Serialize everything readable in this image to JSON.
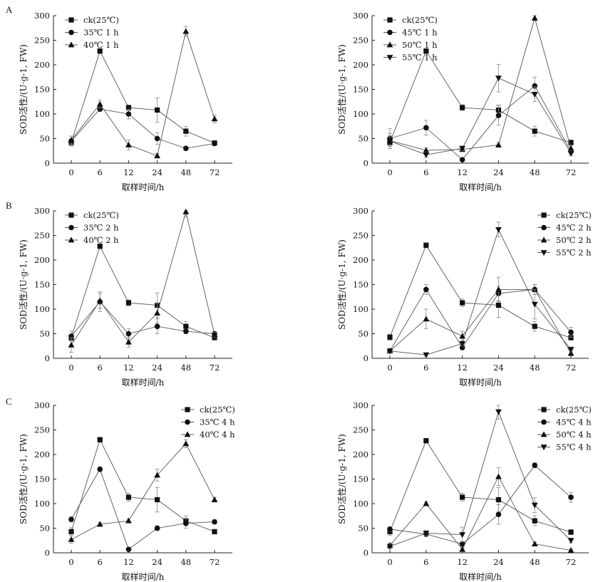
{
  "row_labels": [
    "A",
    "B",
    "C"
  ],
  "chart_data": [
    {
      "type": "line",
      "panel": "A-left",
      "categories": [
        "0",
        "6",
        "12",
        "24",
        "48",
        "72"
      ],
      "xlabel": "取样时间/h",
      "ylabel": "SOD活性/(U·g-1, FW)",
      "ylim": [
        0,
        300
      ],
      "yticks": [
        "0",
        "50",
        "100",
        "150",
        "200",
        "250",
        "300"
      ],
      "legend_position": "top-left",
      "series": [
        {
          "name": "ck(25℃)",
          "marker": "square",
          "values": [
            42,
            228,
            113,
            108,
            65,
            41
          ],
          "errors": [
            6,
            5,
            5,
            25,
            10,
            4
          ]
        },
        {
          "name": "35℃ 1 h",
          "marker": "circle",
          "values": [
            45,
            110,
            100,
            50,
            30,
            40
          ],
          "errors": [
            10,
            5,
            10,
            12,
            4,
            3
          ]
        },
        {
          "name": "40℃ 1 h",
          "marker": "triangle-up",
          "values": [
            47,
            120,
            37,
            15,
            268,
            90
          ],
          "errors": [
            8,
            8,
            10,
            5,
            10,
            8
          ]
        }
      ]
    },
    {
      "type": "line",
      "panel": "A-right",
      "categories": [
        "0",
        "6",
        "12",
        "24",
        "48",
        "72"
      ],
      "xlabel": "取样时间/h",
      "ylabel": "SOD活性/(U·g-1, FW)",
      "ylim": [
        0,
        300
      ],
      "yticks": [
        "0",
        "50",
        "100",
        "150",
        "200",
        "250",
        "300"
      ],
      "legend_position": "top-left",
      "series": [
        {
          "name": "ck(25℃)",
          "marker": "square",
          "values": [
            42,
            228,
            113,
            108,
            65,
            42
          ],
          "errors": [
            8,
            5,
            6,
            10,
            10,
            5
          ]
        },
        {
          "name": "45℃ 1 h",
          "marker": "circle",
          "values": [
            50,
            72,
            7,
            97,
            157,
            24
          ],
          "errors": [
            20,
            15,
            3,
            20,
            18,
            5
          ]
        },
        {
          "name": "50℃ 1 h",
          "marker": "triangle-up",
          "values": [
            46,
            26,
            28,
            37,
            295,
            30
          ],
          "errors": [
            10,
            5,
            5,
            5,
            5,
            5
          ]
        },
        {
          "name": "55℃ 1 h",
          "marker": "triangle-down",
          "values": [
            45,
            17,
            30,
            173,
            140,
            20
          ],
          "errors": [
            15,
            5,
            5,
            28,
            15,
            5
          ]
        }
      ]
    },
    {
      "type": "line",
      "panel": "B-left",
      "categories": [
        "0",
        "6",
        "12",
        "24",
        "48",
        "72"
      ],
      "xlabel": "取样时间/h",
      "ylabel": "SOD活性/(U·g-1, FW)",
      "ylim": [
        0,
        300
      ],
      "yticks": [
        "0",
        "50",
        "100",
        "150",
        "200",
        "250",
        "300"
      ],
      "legend_position": "top-left",
      "series": [
        {
          "name": "ck(25℃)",
          "marker": "square",
          "values": [
            42,
            228,
            113,
            108,
            65,
            42
          ],
          "errors": [
            6,
            5,
            6,
            25,
            10,
            4
          ]
        },
        {
          "name": "35℃ 2 h",
          "marker": "circle",
          "values": [
            45,
            115,
            50,
            65,
            55,
            50
          ],
          "errors": [
            10,
            20,
            10,
            15,
            5,
            5
          ]
        },
        {
          "name": "40℃ 2 h",
          "marker": "triangle-up",
          "values": [
            27,
            117,
            33,
            92,
            298,
            48
          ],
          "errors": [
            15,
            15,
            10,
            20,
            10,
            5
          ]
        }
      ]
    },
    {
      "type": "line",
      "panel": "B-right",
      "categories": [
        "0",
        "6",
        "12",
        "24",
        "48",
        "72"
      ],
      "xlabel": "取样时间/h",
      "ylabel": "SOD活性/(U·g-1, FW)",
      "ylim": [
        0,
        300
      ],
      "yticks": [
        "0",
        "50",
        "100",
        "150",
        "200",
        "250",
        "300"
      ],
      "legend_position": "top-right",
      "series": [
        {
          "name": "ck(25℃)",
          "marker": "square",
          "values": [
            43,
            230,
            113,
            108,
            65,
            42
          ],
          "errors": [
            6,
            5,
            8,
            25,
            10,
            5
          ]
        },
        {
          "name": "45℃ 2 h",
          "marker": "circle",
          "values": [
            15,
            140,
            22,
            132,
            140,
            53
          ],
          "errors": [
            3,
            10,
            5,
            15,
            10,
            10
          ]
        },
        {
          "name": "50℃ 2 h",
          "marker": "triangle-up",
          "values": [
            15,
            80,
            45,
            140,
            140,
            10
          ],
          "errors": [
            3,
            20,
            10,
            25,
            10,
            5
          ]
        },
        {
          "name": "55℃ 2 h",
          "marker": "triangle-down",
          "values": [
            15,
            7,
            30,
            262,
            110,
            18
          ],
          "errors": [
            3,
            3,
            5,
            15,
            30,
            5
          ]
        }
      ]
    },
    {
      "type": "line",
      "panel": "C-left",
      "categories": [
        "0",
        "6",
        "12",
        "24",
        "48",
        "72"
      ],
      "xlabel": "取样时间/h",
      "ylabel": "SOD活性/(U·g-1, FW)",
      "ylim": [
        0,
        300
      ],
      "yticks": [
        "0",
        "50",
        "100",
        "150",
        "200",
        "250",
        "300"
      ],
      "legend_position": "top-right",
      "series": [
        {
          "name": "ck(25℃)",
          "marker": "square",
          "values": [
            43,
            230,
            113,
            108,
            65,
            43
          ],
          "errors": [
            8,
            5,
            8,
            25,
            10,
            4
          ]
        },
        {
          "name": "35℃ 4 h",
          "marker": "circle",
          "values": [
            68,
            170,
            7,
            50,
            60,
            63
          ],
          "errors": [
            5,
            5,
            3,
            5,
            10,
            4
          ]
        },
        {
          "name": "40℃ 4 h",
          "marker": "triangle-up",
          "values": [
            27,
            58,
            65,
            158,
            222,
            108
          ],
          "errors": [
            8,
            4,
            4,
            12,
            8,
            5
          ]
        }
      ]
    },
    {
      "type": "line",
      "panel": "C-right",
      "categories": [
        "0",
        "6",
        "12",
        "24",
        "48",
        "72"
      ],
      "xlabel": "取样时间/h",
      "ylabel": "SOD活性/(U·g-1, FW)",
      "ylim": [
        0,
        300
      ],
      "yticks": [
        "0",
        "50",
        "100",
        "150",
        "200",
        "250",
        "300"
      ],
      "legend_position": "top-right",
      "series": [
        {
          "name": "ck(25℃)",
          "marker": "square",
          "values": [
            43,
            228,
            113,
            108,
            65,
            42
          ],
          "errors": [
            8,
            5,
            8,
            25,
            10,
            5
          ]
        },
        {
          "name": "45℃ 4 h",
          "marker": "circle",
          "values": [
            48,
            38,
            18,
            78,
            178,
            113
          ],
          "errors": [
            5,
            5,
            5,
            20,
            5,
            10
          ]
        },
        {
          "name": "50℃ 4 h",
          "marker": "triangle-up",
          "values": [
            15,
            100,
            7,
            155,
            18,
            5
          ],
          "errors": [
            5,
            4,
            3,
            18,
            4,
            2
          ]
        },
        {
          "name": "55℃ 4 h",
          "marker": "triangle-down",
          "values": [
            13,
            40,
            37,
            287,
            97,
            25
          ],
          "errors": [
            5,
            5,
            15,
            15,
            15,
            5
          ]
        }
      ]
    }
  ]
}
